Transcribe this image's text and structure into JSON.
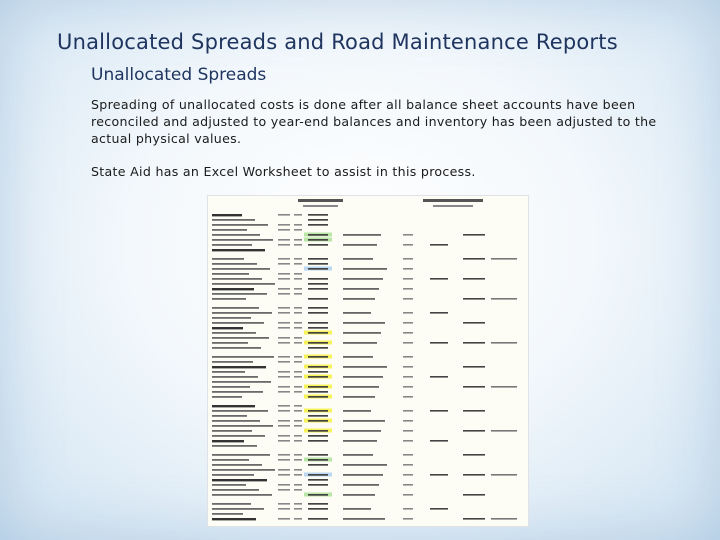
{
  "title": "Unallocated Spreads and Road Maintenance Reports",
  "subtitle": "Unallocated Spreads",
  "paragraphs": [
    "Spreading of unallocated costs is done after all balance sheet accounts have been reconciled and adjusted to year-end balances and inventory has been adjusted to the actual physical values.",
    "State Aid has an Excel Worksheet to assist in this process."
  ],
  "spreadsheet": {
    "highlight_colors": {
      "yellow": "#f7f25a",
      "green": "#b9e5a7",
      "blue": "#bcd7f2"
    }
  }
}
